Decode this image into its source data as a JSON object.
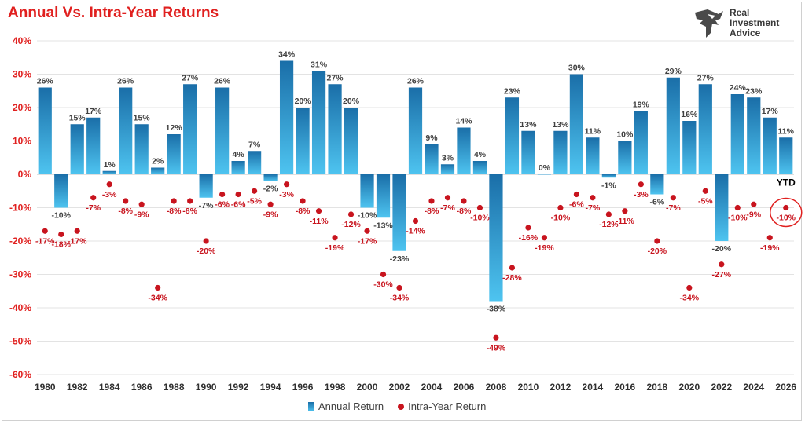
{
  "title": "Annual Vs. Intra-Year Returns",
  "brand": {
    "line1": "Real",
    "line2": "Investment",
    "line3": "Advice"
  },
  "legend": {
    "bar_label": "Annual Return",
    "dot_label": "Intra-Year Return"
  },
  "colors": {
    "title": "#e0201f",
    "bar_top": "#1a6ea8",
    "bar_bottom": "#4ec4f0",
    "dot": "#c8141e",
    "axis_label": "#e0201f",
    "bar_label": "#404040"
  },
  "chart_data": {
    "type": "bar",
    "title": "Annual Vs. Intra-Year Returns",
    "xlabel": "",
    "ylabel": "",
    "ylim": [
      -60,
      40
    ],
    "y_ticks": [
      "40%",
      "30%",
      "20%",
      "10%",
      "0%",
      "-10%",
      "-20%",
      "-30%",
      "-40%",
      "-50%",
      "-60%"
    ],
    "x_tick_labels": [
      "1980",
      "1982",
      "1984",
      "1986",
      "1988",
      "1990",
      "1992",
      "1994",
      "1996",
      "1998",
      "2000",
      "2002",
      "2004",
      "2006",
      "2008",
      "2010",
      "2012",
      "2014",
      "2016",
      "2018",
      "2020",
      "2022",
      "2024",
      "2026"
    ],
    "annotation": "YTD",
    "grid": true,
    "legend_position": "bottom",
    "categories": [
      1980,
      1981,
      1982,
      1983,
      1984,
      1985,
      1986,
      1987,
      1988,
      1989,
      1990,
      1991,
      1992,
      1993,
      1994,
      1995,
      1996,
      1997,
      1998,
      1999,
      2000,
      2001,
      2002,
      2003,
      2004,
      2005,
      2006,
      2007,
      2008,
      2009,
      2010,
      2011,
      2012,
      2013,
      2014,
      2015,
      2016,
      2017,
      2018,
      2019,
      2020,
      2021,
      2022,
      2023,
      2024,
      2025,
      2026
    ],
    "series": [
      {
        "name": "Annual Return",
        "type": "bar",
        "values": [
          26,
          -10,
          15,
          17,
          1,
          26,
          15,
          2,
          12,
          27,
          -7,
          26,
          4,
          7,
          -2,
          34,
          20,
          31,
          27,
          20,
          -10,
          -13,
          -23,
          26,
          9,
          3,
          14,
          4,
          -38,
          23,
          13,
          0,
          13,
          30,
          11,
          -1,
          10,
          19,
          -6,
          29,
          16,
          27,
          -20,
          24,
          23,
          17,
          11
        ],
        "labels": [
          "26%",
          "-10%",
          "15%",
          "17%",
          "1%",
          "26%",
          "15%",
          "2%",
          "12%",
          "27%",
          "-7%",
          "26%",
          "4%",
          "7%",
          "-2%",
          "34%",
          "20%",
          "31%",
          "27%",
          "20%",
          "-10%",
          "-13%",
          "-23%",
          "26%",
          "9%",
          "3%",
          "14%",
          "4%",
          "-38%",
          "23%",
          "13%",
          "0%",
          "13%",
          "30%",
          "11%",
          "-1%",
          "10%",
          "19%",
          "-6%",
          "29%",
          "16%",
          "27%",
          "-20%",
          "24%",
          "23%",
          "17%",
          "11%"
        ]
      },
      {
        "name": "Intra-Year Return",
        "type": "scatter",
        "values": [
          -17,
          -18,
          -17,
          -7,
          -3,
          -8,
          -9,
          -34,
          -8,
          -8,
          -20,
          -6,
          -6,
          -5,
          -9,
          -3,
          -8,
          -11,
          -19,
          -12,
          -17,
          -30,
          -34,
          -14,
          -8,
          -7,
          -8,
          -10,
          -49,
          -28,
          -16,
          -19,
          -10,
          -6,
          -7,
          -12,
          -11,
          -3,
          -20,
          -7,
          -34,
          -5,
          -27,
          -10,
          -9,
          -19,
          -10
        ],
        "labels": [
          "-17%",
          "-18%",
          "-17%",
          "-7%",
          "-3%",
          "-8%",
          "-9%",
          "-34%",
          "-8%",
          "-8%",
          "-20%",
          "-6%",
          "-6%",
          "-5%",
          "-9%",
          "-3%",
          "-8%",
          "-11%",
          "-19%",
          "-12%",
          "-17%",
          "-30%",
          "-34%",
          "-14%",
          "-8%",
          "-7%",
          "-8%",
          "-10%",
          "-49%",
          "-28%",
          "-16%",
          "-19%",
          "-10%",
          "-6%",
          "-7%",
          "-12%",
          "-11%",
          "-3%",
          "-20%",
          "-7%",
          "-34%",
          "-5%",
          "-27%",
          "-10%",
          "-9%",
          "-19%",
          "-10%"
        ]
      }
    ]
  }
}
